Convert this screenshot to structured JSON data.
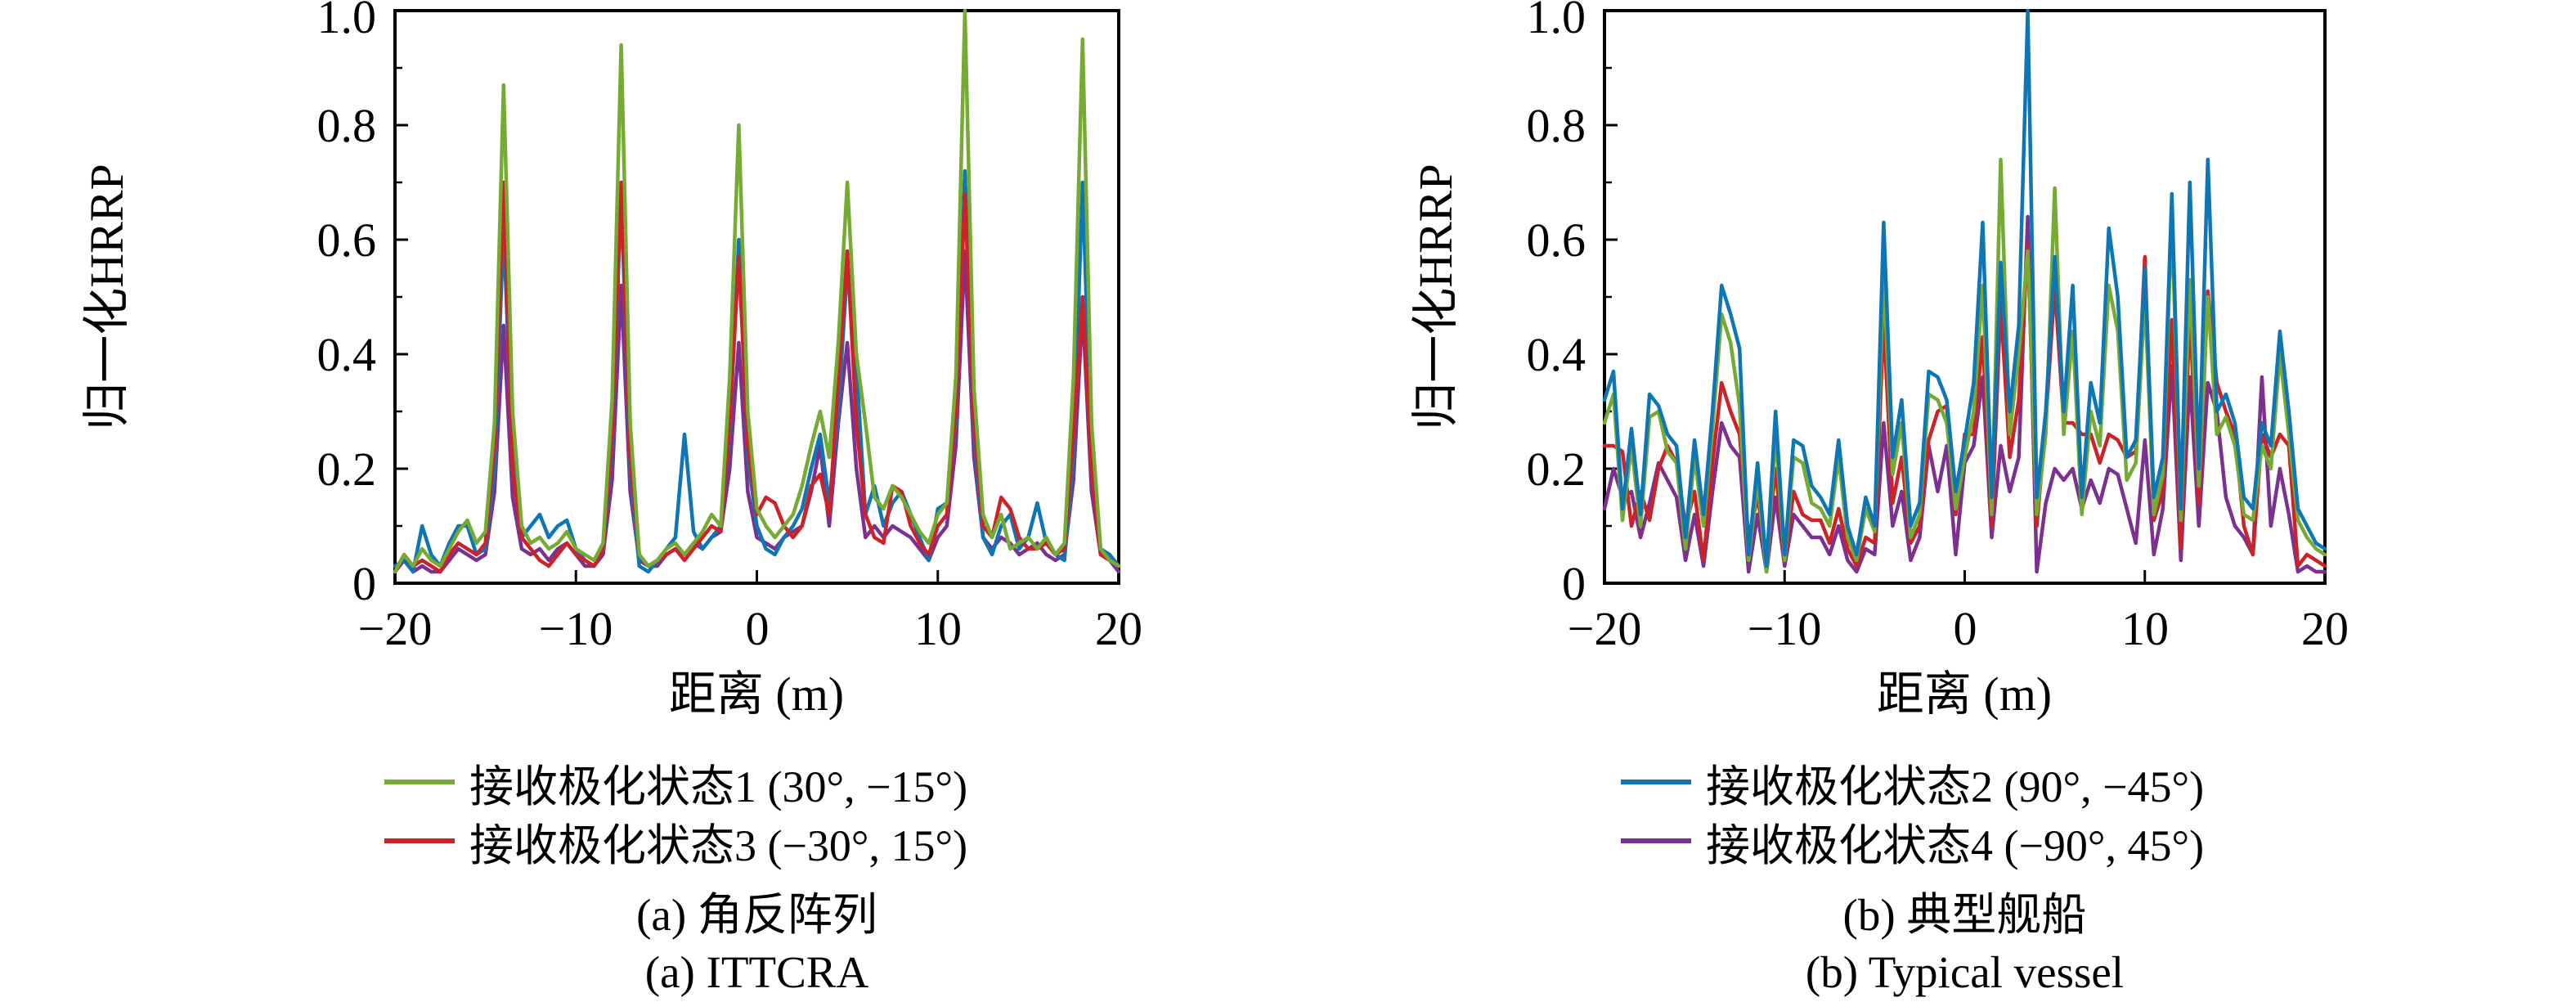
{
  "figure": {
    "background": "#ffffff",
    "charts": [
      {
        "id": "a",
        "y_axis_label": "归一化HRRP",
        "x_axis_label": "距离 (m)",
        "x_tick_labels": [
          "−20",
          "−10",
          "0",
          "10",
          "20"
        ],
        "y_tick_labels": [
          "0",
          "0.2",
          "0.4",
          "0.6",
          "0.8",
          "1.0"
        ],
        "caption_zh": "(a) 角反阵列",
        "caption_en": "(a) ITTCRA",
        "legend": [
          {
            "label": "接收极化状态1 (30°, −15°)",
            "color": "#76ab33"
          },
          {
            "label": "接收极化状态3 (−30°, 15°)",
            "color": "#cc2329"
          }
        ]
      },
      {
        "id": "b",
        "y_axis_label": "归一化HRRP",
        "x_axis_label": "距离 (m)",
        "x_tick_labels": [
          "−20",
          "−10",
          "0",
          "10",
          "20"
        ],
        "y_tick_labels": [
          "0",
          "0.2",
          "0.4",
          "0.6",
          "0.8",
          "1.0"
        ],
        "caption_zh": "(b) 典型舰船",
        "caption_en": "(b) Typical vessel",
        "legend": [
          {
            "label": "接收极化状态2 (90°, −45°)",
            "color": "#0e76b4"
          },
          {
            "label": "接收极化状态4 (−90°, 45°)",
            "color": "#7c3191"
          }
        ]
      }
    ]
  },
  "chart_data": [
    {
      "type": "line",
      "title": "(a) 角反阵列 / ITTCRA",
      "xlabel": "距离 (m)",
      "ylabel": "归一化HRRP",
      "xlim": [
        -20,
        20
      ],
      "ylim": [
        0,
        1
      ],
      "x_ticks": [
        -20,
        -10,
        0,
        10,
        20
      ],
      "y_ticks": [
        0,
        0.2,
        0.4,
        0.6,
        0.8,
        1.0
      ],
      "grid": false,
      "legend_position": "below",
      "x_start": -20,
      "x_step": 0.5,
      "series": [
        {
          "name": "接收极化状态4 (−90°, 45°)",
          "color": "#7c3191",
          "values": [
            0.02,
            0.04,
            0.02,
            0.03,
            0.02,
            0.02,
            0.04,
            0.06,
            0.05,
            0.04,
            0.05,
            0.16,
            0.45,
            0.15,
            0.06,
            0.05,
            0.06,
            0.04,
            0.06,
            0.07,
            0.05,
            0.03,
            0.03,
            0.05,
            0.18,
            0.52,
            0.16,
            0.04,
            0.03,
            0.03,
            0.05,
            0.06,
            0.05,
            0.07,
            0.06,
            0.08,
            0.09,
            0.2,
            0.42,
            0.16,
            0.08,
            0.07,
            0.06,
            0.08,
            0.09,
            0.1,
            0.16,
            0.24,
            0.1,
            0.28,
            0.42,
            0.2,
            0.08,
            0.1,
            0.08,
            0.1,
            0.09,
            0.08,
            0.06,
            0.04,
            0.08,
            0.1,
            0.24,
            0.58,
            0.22,
            0.08,
            0.06,
            0.08,
            0.07,
            0.05,
            0.06,
            0.07,
            0.05,
            0.04,
            0.05,
            0.18,
            0.48,
            0.16,
            0.05,
            0.04,
            0.02
          ]
        },
        {
          "name": "接收极化状态2 (90°, −45°)",
          "color": "#0e76b4",
          "values": [
            0.03,
            0.04,
            0.02,
            0.1,
            0.05,
            0.03,
            0.07,
            0.1,
            0.1,
            0.05,
            0.06,
            0.2,
            0.62,
            0.22,
            0.08,
            0.1,
            0.12,
            0.08,
            0.1,
            0.11,
            0.06,
            0.04,
            0.03,
            0.06,
            0.24,
            0.68,
            0.2,
            0.03,
            0.02,
            0.04,
            0.06,
            0.08,
            0.26,
            0.09,
            0.06,
            0.08,
            0.1,
            0.26,
            0.6,
            0.22,
            0.1,
            0.06,
            0.05,
            0.08,
            0.1,
            0.13,
            0.2,
            0.26,
            0.14,
            0.3,
            0.55,
            0.38,
            0.12,
            0.17,
            0.1,
            0.14,
            0.16,
            0.12,
            0.08,
            0.04,
            0.13,
            0.14,
            0.28,
            0.72,
            0.26,
            0.08,
            0.05,
            0.1,
            0.12,
            0.06,
            0.08,
            0.14,
            0.07,
            0.05,
            0.04,
            0.22,
            0.7,
            0.2,
            0.06,
            0.05,
            0.03
          ]
        },
        {
          "name": "接收极化状态3 (−30°, 15°)",
          "color": "#cc2329",
          "values": [
            0.02,
            0.05,
            0.03,
            0.04,
            0.03,
            0.02,
            0.05,
            0.07,
            0.06,
            0.05,
            0.07,
            0.24,
            0.7,
            0.2,
            0.08,
            0.06,
            0.04,
            0.03,
            0.05,
            0.07,
            0.05,
            0.04,
            0.03,
            0.06,
            0.26,
            0.7,
            0.22,
            0.05,
            0.03,
            0.04,
            0.05,
            0.06,
            0.04,
            0.06,
            0.08,
            0.1,
            0.09,
            0.28,
            0.57,
            0.24,
            0.12,
            0.15,
            0.14,
            0.1,
            0.08,
            0.1,
            0.17,
            0.19,
            0.12,
            0.35,
            0.58,
            0.28,
            0.12,
            0.08,
            0.07,
            0.17,
            0.16,
            0.1,
            0.07,
            0.05,
            0.1,
            0.12,
            0.3,
            0.68,
            0.28,
            0.1,
            0.08,
            0.15,
            0.13,
            0.08,
            0.06,
            0.06,
            0.07,
            0.05,
            0.06,
            0.26,
            0.5,
            0.2,
            0.05,
            0.04,
            0.03
          ]
        },
        {
          "name": "接收极化状态1 (30°, −15°)",
          "color": "#76ab33",
          "values": [
            0.02,
            0.05,
            0.03,
            0.06,
            0.04,
            0.03,
            0.06,
            0.09,
            0.11,
            0.07,
            0.09,
            0.28,
            0.87,
            0.3,
            0.1,
            0.07,
            0.08,
            0.06,
            0.07,
            0.09,
            0.06,
            0.05,
            0.04,
            0.07,
            0.32,
            0.94,
            0.28,
            0.05,
            0.03,
            0.04,
            0.06,
            0.07,
            0.05,
            0.07,
            0.09,
            0.12,
            0.1,
            0.36,
            0.8,
            0.3,
            0.13,
            0.1,
            0.08,
            0.1,
            0.12,
            0.17,
            0.24,
            0.3,
            0.22,
            0.42,
            0.7,
            0.4,
            0.28,
            0.15,
            0.13,
            0.17,
            0.15,
            0.12,
            0.09,
            0.07,
            0.12,
            0.14,
            0.36,
            1.0,
            0.34,
            0.12,
            0.08,
            0.12,
            0.06,
            0.07,
            0.08,
            0.06,
            0.08,
            0.05,
            0.07,
            0.36,
            0.95,
            0.28,
            0.06,
            0.04,
            0.03
          ]
        }
      ]
    },
    {
      "type": "line",
      "title": "(b) 典型舰船 / Typical vessel",
      "xlabel": "距离 (m)",
      "ylabel": "归一化HRRP",
      "xlim": [
        -20,
        20
      ],
      "ylim": [
        0,
        1
      ],
      "x_ticks": [
        -20,
        -10,
        0,
        10,
        20
      ],
      "y_ticks": [
        0,
        0.2,
        0.4,
        0.6,
        0.8,
        1.0
      ],
      "grid": false,
      "legend_position": "below",
      "x_start": -20,
      "x_step": 0.5,
      "series": [
        {
          "name": "接收极化状态4 (−90°, 45°)",
          "color": "#7c3191",
          "values": [
            0.13,
            0.2,
            0.15,
            0.16,
            0.08,
            0.14,
            0.21,
            0.18,
            0.15,
            0.04,
            0.12,
            0.03,
            0.16,
            0.28,
            0.24,
            0.22,
            0.02,
            0.12,
            0.02,
            0.15,
            0.03,
            0.12,
            0.1,
            0.08,
            0.08,
            0.05,
            0.1,
            0.04,
            0.02,
            0.06,
            0.05,
            0.28,
            0.1,
            0.16,
            0.04,
            0.08,
            0.24,
            0.16,
            0.24,
            0.05,
            0.21,
            0.24,
            0.36,
            0.08,
            0.24,
            0.16,
            0.22,
            0.64,
            0.02,
            0.14,
            0.2,
            0.18,
            0.2,
            0.13,
            0.18,
            0.14,
            0.2,
            0.19,
            0.13,
            0.07,
            0.25,
            0.05,
            0.13,
            0.38,
            0.04,
            0.36,
            0.1,
            0.35,
            0.3,
            0.15,
            0.1,
            0.08,
            0.05,
            0.36,
            0.1,
            0.2,
            0.12,
            0.02,
            0.03,
            0.02,
            0.02
          ]
        },
        {
          "name": "接收极化状态3 (−30°, 15°)",
          "color": "#cc2329",
          "values": [
            0.24,
            0.24,
            0.23,
            0.1,
            0.16,
            0.11,
            0.2,
            0.24,
            0.21,
            0.1,
            0.16,
            0.04,
            0.21,
            0.35,
            0.3,
            0.26,
            0.08,
            0.15,
            0.05,
            0.2,
            0.04,
            0.16,
            0.12,
            0.11,
            0.11,
            0.07,
            0.13,
            0.06,
            0.03,
            0.08,
            0.07,
            0.46,
            0.14,
            0.22,
            0.07,
            0.1,
            0.25,
            0.3,
            0.31,
            0.12,
            0.26,
            0.26,
            0.43,
            0.1,
            0.49,
            0.22,
            0.32,
            0.59,
            0.1,
            0.28,
            0.52,
            0.28,
            0.28,
            0.26,
            0.26,
            0.21,
            0.26,
            0.25,
            0.22,
            0.23,
            0.57,
            0.11,
            0.16,
            0.46,
            0.06,
            0.47,
            0.14,
            0.51,
            0.35,
            0.3,
            0.26,
            0.1,
            0.05,
            0.26,
            0.22,
            0.26,
            0.24,
            0.03,
            0.05,
            0.04,
            0.03
          ]
        },
        {
          "name": "接收极化状态1 (30°, −15°)",
          "color": "#76ab33",
          "values": [
            0.28,
            0.33,
            0.11,
            0.24,
            0.1,
            0.29,
            0.3,
            0.23,
            0.21,
            0.06,
            0.22,
            0.1,
            0.27,
            0.47,
            0.42,
            0.31,
            0.04,
            0.18,
            0.02,
            0.26,
            0.04,
            0.22,
            0.21,
            0.14,
            0.13,
            0.1,
            0.22,
            0.08,
            0.04,
            0.13,
            0.09,
            0.54,
            0.19,
            0.28,
            0.08,
            0.12,
            0.33,
            0.32,
            0.28,
            0.13,
            0.22,
            0.3,
            0.52,
            0.12,
            0.74,
            0.26,
            0.4,
            0.58,
            0.12,
            0.26,
            0.69,
            0.26,
            0.44,
            0.12,
            0.3,
            0.24,
            0.52,
            0.44,
            0.18,
            0.21,
            0.5,
            0.12,
            0.19,
            0.64,
            0.11,
            0.53,
            0.17,
            0.5,
            0.26,
            0.29,
            0.24,
            0.12,
            0.11,
            0.24,
            0.2,
            0.4,
            0.26,
            0.11,
            0.08,
            0.06,
            0.05
          ]
        },
        {
          "name": "接收极化状态2 (90°, −45°)",
          "color": "#0e76b4",
          "values": [
            0.32,
            0.37,
            0.13,
            0.27,
            0.12,
            0.33,
            0.31,
            0.26,
            0.24,
            0.08,
            0.25,
            0.12,
            0.3,
            0.52,
            0.47,
            0.41,
            0.05,
            0.21,
            0.03,
            0.3,
            0.05,
            0.25,
            0.24,
            0.17,
            0.15,
            0.12,
            0.25,
            0.1,
            0.05,
            0.15,
            0.1,
            0.63,
            0.22,
            0.32,
            0.1,
            0.14,
            0.37,
            0.36,
            0.32,
            0.16,
            0.25,
            0.35,
            0.63,
            0.15,
            0.56,
            0.3,
            0.45,
            1.0,
            0.15,
            0.3,
            0.57,
            0.3,
            0.52,
            0.15,
            0.35,
            0.28,
            0.62,
            0.5,
            0.22,
            0.25,
            0.55,
            0.15,
            0.22,
            0.68,
            0.13,
            0.7,
            0.2,
            0.74,
            0.3,
            0.33,
            0.28,
            0.15,
            0.13,
            0.28,
            0.24,
            0.44,
            0.3,
            0.13,
            0.1,
            0.07,
            0.06
          ]
        }
      ]
    }
  ]
}
